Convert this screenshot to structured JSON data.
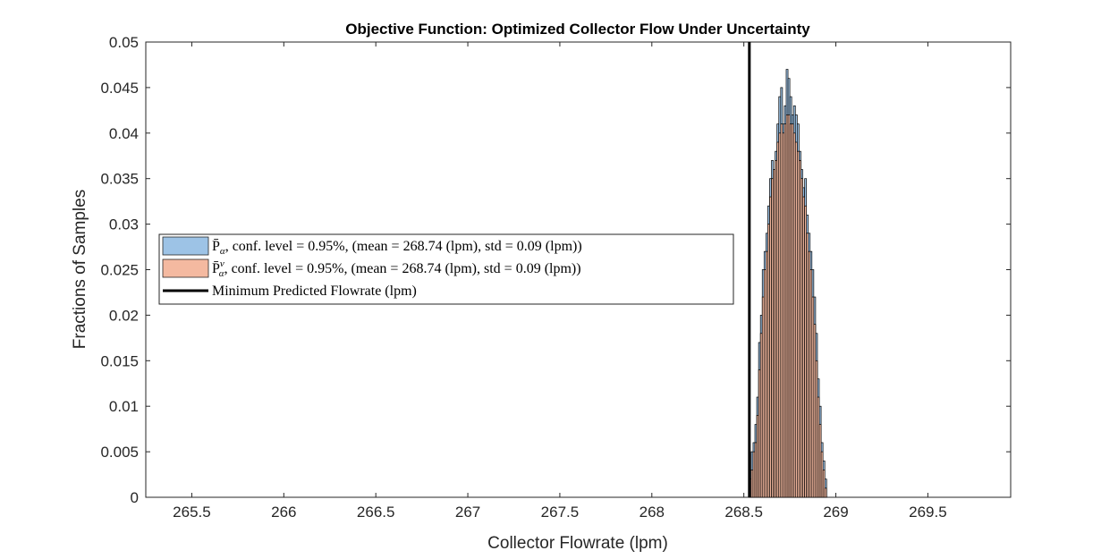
{
  "chart_data": {
    "type": "bar",
    "title": "Objective Function: Optimized Collector Flow Under Uncertainty",
    "xlabel": "Collector Flowrate (lpm)",
    "ylabel": "Fractions of Samples",
    "xlim": [
      265.25,
      269.95
    ],
    "ylim": [
      0,
      0.05
    ],
    "x_ticks": [
      265.5,
      266,
      266.5,
      267,
      267.5,
      268,
      268.5,
      269,
      269.5
    ],
    "x_tick_labels": [
      "265.5",
      "266",
      "266.5",
      "267",
      "267.5",
      "268",
      "268.5",
      "269",
      "269.5"
    ],
    "y_ticks": [
      0,
      0.005,
      0.01,
      0.015,
      0.02,
      0.025,
      0.03,
      0.035,
      0.04,
      0.045,
      0.05
    ],
    "y_tick_labels": [
      "0",
      "0.005",
      "0.01",
      "0.015",
      "0.02",
      "0.025",
      "0.03",
      "0.035",
      "0.04",
      "0.045",
      "0.05"
    ],
    "grid": false,
    "legend_position": "center-left",
    "colors": {
      "series_1": "#9dc3e6",
      "series_2": "#f4b9a0",
      "min_line": "#000000",
      "axes": "#262626"
    },
    "bin_width": 0.01,
    "bin_centers": [
      268.535,
      268.545,
      268.555,
      268.565,
      268.575,
      268.585,
      268.595,
      268.605,
      268.615,
      268.625,
      268.635,
      268.645,
      268.655,
      268.665,
      268.675,
      268.685,
      268.695,
      268.705,
      268.715,
      268.725,
      268.735,
      268.745,
      268.755,
      268.765,
      268.775,
      268.785,
      268.795,
      268.805,
      268.815,
      268.825,
      268.835,
      268.845,
      268.855,
      268.865,
      268.875,
      268.885,
      268.895,
      268.905,
      268.915,
      268.925,
      268.935,
      268.945
    ],
    "series": [
      {
        "name": "P̄_α, conf. level = 0.95%, (mean = 268.74 (lpm), std = 0.09 (lpm))",
        "values": [
          0.003,
          0.005,
          0.006,
          0.008,
          0.011,
          0.017,
          0.02,
          0.025,
          0.027,
          0.029,
          0.032,
          0.035,
          0.037,
          0.035,
          0.038,
          0.041,
          0.044,
          0.045,
          0.041,
          0.043,
          0.047,
          0.046,
          0.044,
          0.042,
          0.043,
          0.042,
          0.041,
          0.038,
          0.036,
          0.034,
          0.035,
          0.031,
          0.029,
          0.027,
          0.025,
          0.022,
          0.018,
          0.013,
          0.01,
          0.006,
          0.004,
          0.002
        ]
      },
      {
        "name": "P̄ᵛ_α, conf. level = 0.95%, (mean = 268.74 (lpm), std = 0.09 (lpm))",
        "values": [
          0.002,
          0.003,
          0.005,
          0.006,
          0.009,
          0.014,
          0.018,
          0.022,
          0.025,
          0.027,
          0.03,
          0.033,
          0.035,
          0.036,
          0.037,
          0.039,
          0.04,
          0.041,
          0.04,
          0.041,
          0.042,
          0.042,
          0.041,
          0.041,
          0.04,
          0.039,
          0.038,
          0.037,
          0.035,
          0.033,
          0.032,
          0.029,
          0.027,
          0.025,
          0.022,
          0.019,
          0.015,
          0.011,
          0.008,
          0.005,
          0.003,
          0.001
        ]
      }
    ],
    "min_line": {
      "name": "Minimum Predicted Flowrate (lpm)",
      "x": 268.53
    },
    "legend": {
      "entries": [
        {
          "math": "P̄",
          "sub": "α",
          "sup": "",
          "text": ", conf. level = 0.95%, (mean = 268.74 (lpm), std = 0.09 (lpm))"
        },
        {
          "math": "P̄",
          "sub": "α",
          "sup": "v",
          "text": ", conf. level = 0.95%, (mean = 268.74 (lpm), std = 0.09 (lpm))"
        },
        {
          "math": "",
          "sub": "",
          "sup": "",
          "text": "Minimum Predicted Flowrate (lpm)"
        }
      ]
    }
  }
}
